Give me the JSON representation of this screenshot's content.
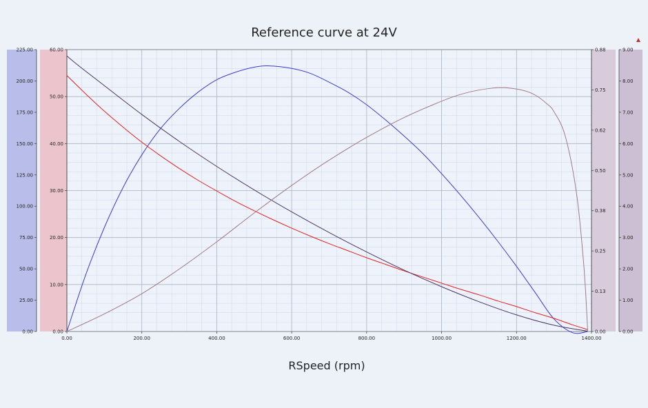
{
  "chart_data": {
    "type": "line",
    "title": "Reference curve at 24V",
    "xlabel": "RSpeed (rpm)",
    "xlim": [
      0,
      1400
    ],
    "x_ticks": [
      "0.00",
      "200.00",
      "400.00",
      "600.00",
      "800.00",
      "1000.00",
      "1200.00",
      "1400.00"
    ],
    "grid": true,
    "axes": [
      {
        "id": "blue_axis",
        "side": "left",
        "color": "#b8bdea",
        "ylim": [
          0,
          225
        ],
        "ticks": [
          "0.00",
          "25.00",
          "50.00",
          "75.00",
          "100.00",
          "125.00",
          "150.00",
          "175.00",
          "200.00",
          "225.00"
        ]
      },
      {
        "id": "red_axis",
        "side": "left",
        "color": "#ecc4cc",
        "ylim": [
          0,
          60
        ],
        "ticks": [
          "0.00",
          "10.00",
          "20.00",
          "30.00",
          "40.00",
          "50.00",
          "60.00"
        ]
      },
      {
        "id": "mauve_axis_1",
        "side": "right",
        "color": "#d8ccdc",
        "ylim": [
          0,
          0.88
        ],
        "ticks": [
          "0.00",
          "0.13",
          "0.25",
          "0.38",
          "0.50",
          "0.62",
          "0.75",
          "0.88"
        ]
      },
      {
        "id": "mauve_axis_2",
        "side": "right",
        "color": "#cdbfd3",
        "ylim": [
          0,
          9
        ],
        "ticks": [
          "0.00",
          "1.00",
          "2.00",
          "3.00",
          "4.00",
          "5.00",
          "6.00",
          "7.00",
          "8.00",
          "9.00"
        ]
      }
    ],
    "series": [
      {
        "axis": "blue_axis",
        "color": "#3a3ad0",
        "x": [
          0,
          50,
          100,
          150,
          200,
          250,
          300,
          350,
          400,
          450,
          500,
          540,
          600,
          650,
          700,
          750,
          800,
          850,
          900,
          950,
          1000,
          1050,
          1100,
          1150,
          1200,
          1250,
          1300,
          1350,
          1390
        ],
        "y": [
          0,
          45,
          83,
          115,
          141,
          162,
          178,
          191,
          201,
          207,
          211,
          212,
          210,
          206,
          199,
          191,
          181,
          169,
          156,
          142,
          126,
          109,
          91,
          72,
          52,
          31,
          10,
          -1,
          0
        ]
      },
      {
        "axis": "red_axis",
        "color": "#e02020",
        "x": [
          0,
          50,
          100,
          150,
          200,
          250,
          300,
          350,
          400,
          450,
          500,
          550,
          600,
          650,
          700,
          750,
          800,
          850,
          900,
          950,
          1000,
          1050,
          1100,
          1150,
          1200,
          1250,
          1300,
          1350,
          1390
        ],
        "y": [
          54.5,
          50.6,
          46.9,
          43.5,
          40.3,
          37.4,
          34.7,
          32.2,
          29.9,
          27.7,
          25.7,
          23.8,
          22.0,
          20.3,
          18.7,
          17.2,
          15.7,
          14.3,
          12.9,
          11.6,
          10.3,
          9.0,
          7.8,
          6.5,
          5.3,
          4.0,
          2.8,
          1.4,
          0.4
        ]
      },
      {
        "axis": "mauve_axis_2",
        "color": "#4a3565",
        "x": [
          0,
          30,
          100,
          200,
          300,
          400,
          500,
          600,
          700,
          800,
          900,
          1000,
          1100,
          1200,
          1300,
          1390
        ],
        "y": [
          8.8,
          8.5,
          7.85,
          6.93,
          6.07,
          5.27,
          4.52,
          3.82,
          3.16,
          2.54,
          1.96,
          1.43,
          0.95,
          0.53,
          0.2,
          0.01
        ]
      },
      {
        "axis": "mauve_axis_1",
        "color": "#a07888",
        "x": [
          0,
          100,
          200,
          300,
          400,
          500,
          600,
          700,
          800,
          900,
          1000,
          1050,
          1100,
          1150,
          1180,
          1220,
          1250,
          1280,
          1300,
          1330,
          1360,
          1380,
          1390
        ],
        "y": [
          0,
          0.055,
          0.118,
          0.195,
          0.28,
          0.37,
          0.456,
          0.535,
          0.606,
          0.668,
          0.719,
          0.74,
          0.754,
          0.761,
          0.76,
          0.752,
          0.738,
          0.712,
          0.686,
          0.61,
          0.432,
          0.2,
          0
        ]
      }
    ]
  }
}
